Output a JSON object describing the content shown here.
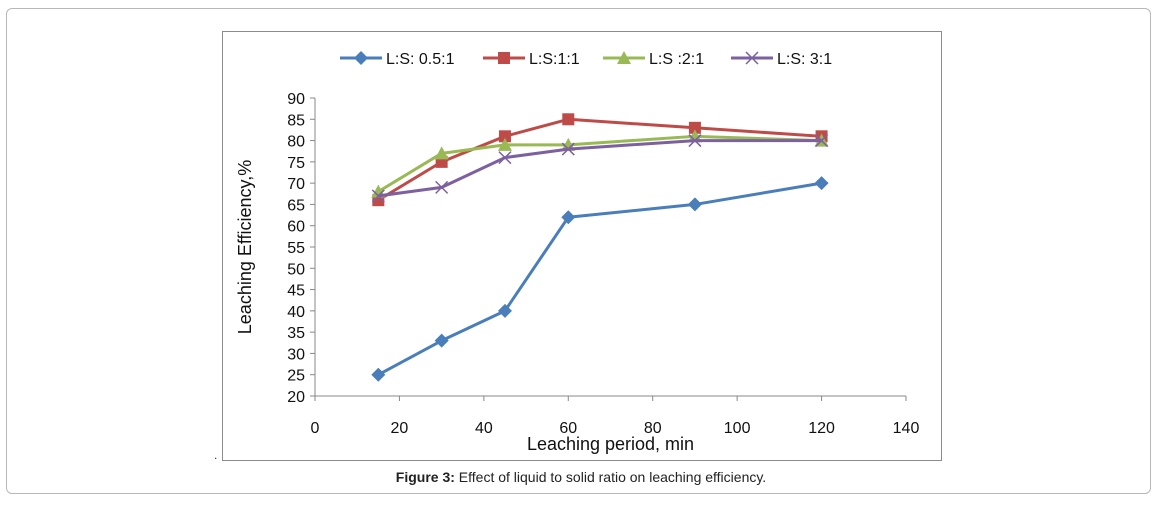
{
  "figure": {
    "caption_prefix": "Figure 3:",
    "caption_text": " Effect of liquid to solid ratio on leaching efficiency.",
    "stray_mark": "."
  },
  "chart_data": {
    "type": "line",
    "title": "",
    "xlabel": "Leaching period, min",
    "ylabel": "Leaching Efficiency,%",
    "xlim": [
      0,
      140
    ],
    "ylim": [
      20,
      90
    ],
    "xticks": [
      0,
      20,
      40,
      60,
      80,
      100,
      120,
      140
    ],
    "yticks": [
      20,
      25,
      30,
      35,
      40,
      45,
      50,
      55,
      60,
      65,
      70,
      75,
      80,
      85,
      90
    ],
    "grid": false,
    "legend_position": "top",
    "series": [
      {
        "name": "L:S: 0.5:1",
        "color": "#4a7ebb",
        "marker": "diamond",
        "points": [
          [
            15,
            25
          ],
          [
            30,
            33
          ],
          [
            45,
            40
          ],
          [
            60,
            62
          ],
          [
            90,
            65
          ],
          [
            120,
            70
          ]
        ]
      },
      {
        "name": "L:S:1:1",
        "color": "#be4b48",
        "marker": "square",
        "points": [
          [
            15,
            66
          ],
          [
            30,
            75
          ],
          [
            45,
            81
          ],
          [
            60,
            85
          ],
          [
            90,
            83
          ],
          [
            120,
            81
          ]
        ]
      },
      {
        "name": "L:S :2:1",
        "color": "#98b954",
        "marker": "triangle",
        "points": [
          [
            15,
            68
          ],
          [
            30,
            77
          ],
          [
            45,
            79
          ],
          [
            60,
            79
          ],
          [
            90,
            81
          ],
          [
            120,
            80
          ]
        ]
      },
      {
        "name": "L:S: 3:1",
        "color": "#7d60a0",
        "marker": "x",
        "points": [
          [
            15,
            67
          ],
          [
            30,
            69
          ],
          [
            45,
            76
          ],
          [
            60,
            78
          ],
          [
            90,
            80
          ],
          [
            120,
            80
          ]
        ]
      }
    ]
  }
}
